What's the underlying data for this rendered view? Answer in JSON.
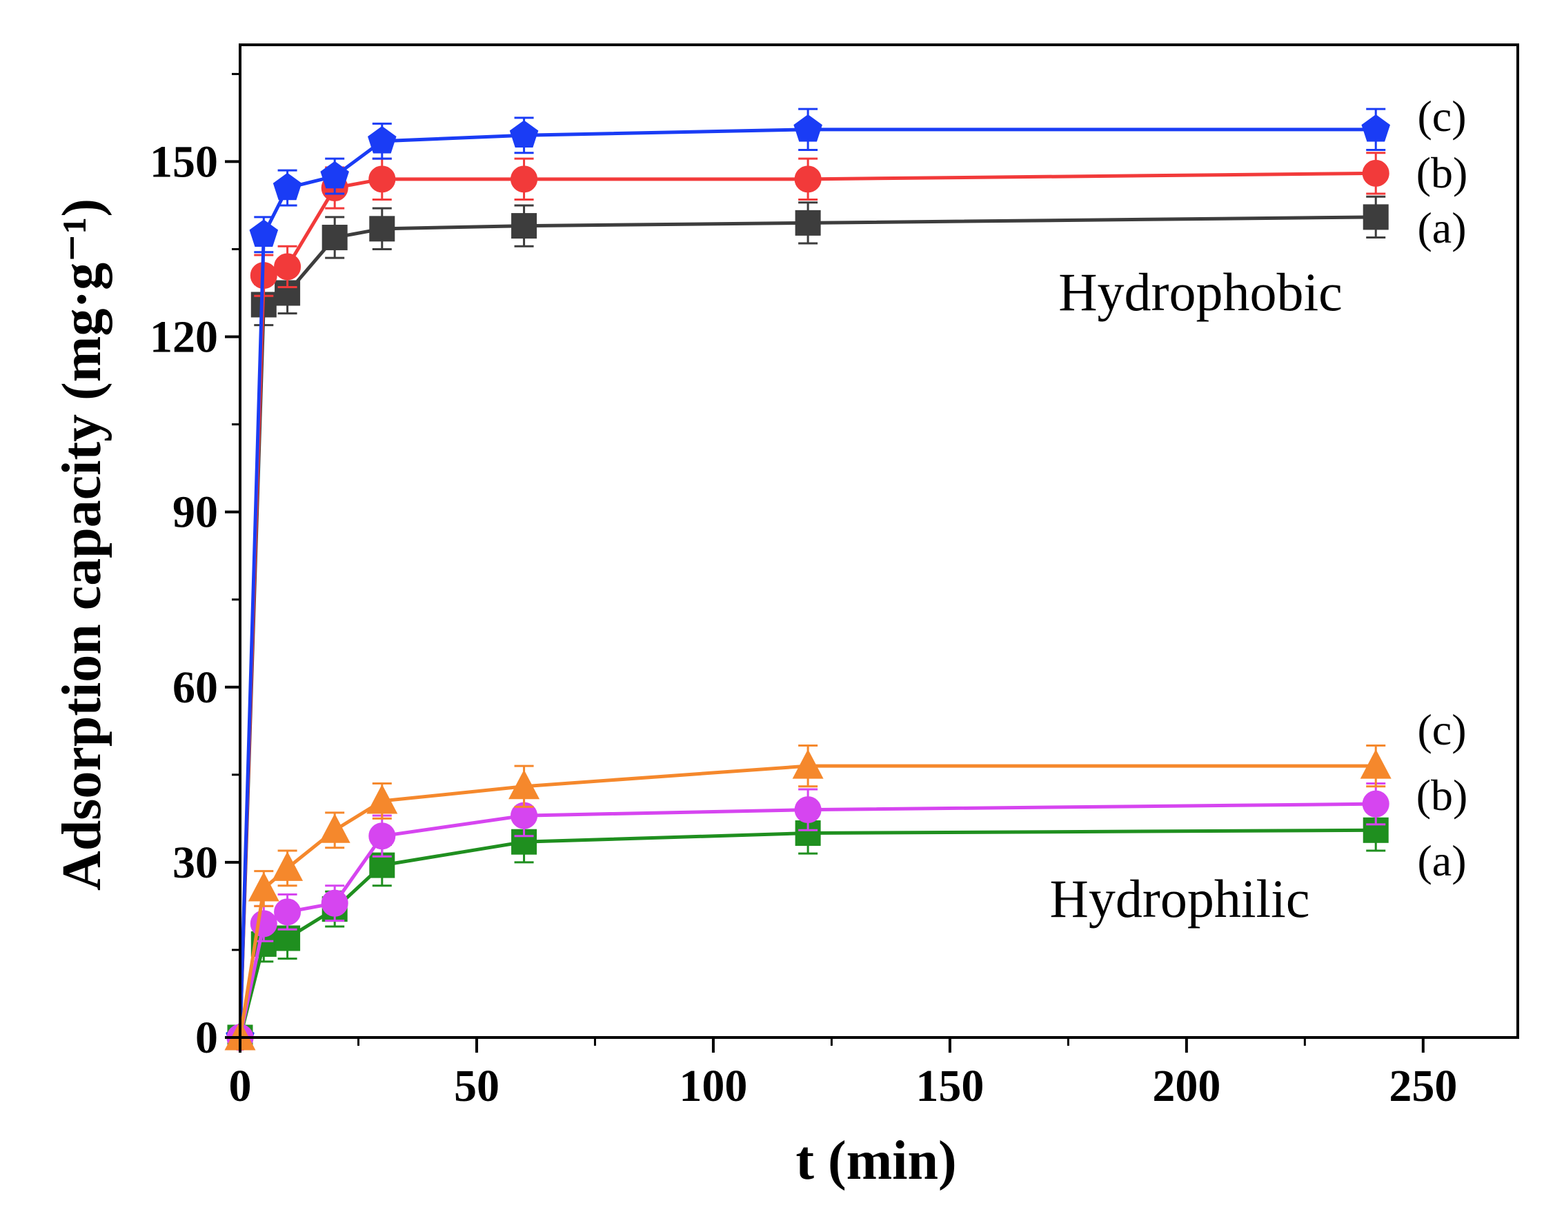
{
  "chart_data": {
    "type": "line",
    "title": "",
    "xlabel": "t (min)",
    "ylabel": "Adsorption capacity (mg·g⁻¹)",
    "xlim": [
      0,
      270
    ],
    "ylim": [
      0,
      170
    ],
    "xticks": [
      0,
      50,
      100,
      150,
      200,
      250
    ],
    "yticks": [
      0,
      30,
      60,
      90,
      120,
      150
    ],
    "x": [
      0,
      5,
      10,
      20,
      30,
      60,
      120,
      240
    ],
    "groups": [
      {
        "name": "Hydrophobic",
        "label": "Hydrophobic"
      },
      {
        "name": "Hydrophilic",
        "label": "Hydrophilic"
      }
    ],
    "series": [
      {
        "name": "Hydrophobic (a)",
        "group": "Hydrophobic",
        "tag": "(a)",
        "color": "#3d3d3d",
        "marker": "square",
        "values": [
          0,
          125.5,
          127.5,
          137,
          138.5,
          139,
          139.5,
          140.5
        ],
        "errors": [
          0,
          3.5,
          3.5,
          3.5,
          3.5,
          3.5,
          3.5,
          3.5
        ]
      },
      {
        "name": "Hydrophobic (b)",
        "group": "Hydrophobic",
        "tag": "(b)",
        "color": "#f23a3a",
        "marker": "circle",
        "values": [
          0,
          130.5,
          132,
          145.5,
          147,
          147,
          147,
          148
        ],
        "errors": [
          0,
          3.5,
          3.5,
          3.5,
          3.5,
          3.5,
          3.5,
          3.5
        ]
      },
      {
        "name": "Hydrophobic (c)",
        "group": "Hydrophobic",
        "tag": "(c)",
        "color": "#1a3cf5",
        "marker": "pentagon",
        "values": [
          0,
          137.5,
          145.5,
          147.5,
          153.5,
          154.5,
          155.5,
          155.5
        ],
        "errors": [
          0,
          3,
          3,
          3,
          3,
          3,
          3.5,
          3.5
        ]
      },
      {
        "name": "Hydrophilic (a)",
        "group": "Hydrophilic",
        "tag": "(a)",
        "color": "#1f8f1f",
        "marker": "square",
        "values": [
          0,
          16,
          17,
          22,
          29.5,
          33.5,
          35,
          35.5
        ],
        "errors": [
          0,
          3,
          3.5,
          3,
          3.5,
          3.5,
          3.5,
          3.5
        ]
      },
      {
        "name": "Hydrophilic (b)",
        "group": "Hydrophilic",
        "tag": "(b)",
        "color": "#d645f0",
        "marker": "circle",
        "values": [
          0,
          19.5,
          21.5,
          23,
          34.5,
          38,
          39,
          40
        ],
        "errors": [
          0,
          3,
          3,
          3,
          3.5,
          3.5,
          3.5,
          3.5
        ]
      },
      {
        "name": "Hydrophilic (c)",
        "group": "Hydrophilic",
        "tag": "(c)",
        "color": "#f5882c",
        "marker": "triangle",
        "values": [
          0,
          25.5,
          29,
          35.5,
          40.5,
          43,
          46.5,
          46.5
        ],
        "errors": [
          0,
          3,
          3,
          3,
          3,
          3.5,
          3.5,
          3.5
        ]
      }
    ]
  }
}
